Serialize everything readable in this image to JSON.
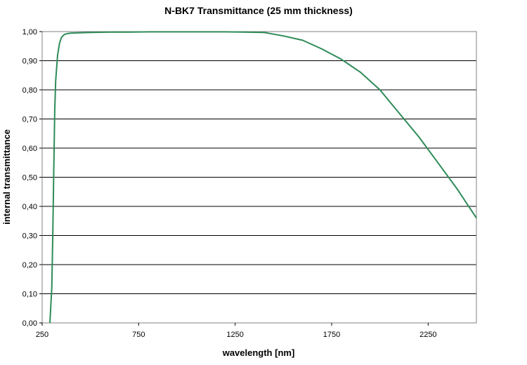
{
  "chart_data": {
    "type": "line",
    "title": "N-BK7 Transmittance (25 mm thickness)",
    "xlabel": "wavelength [nm]",
    "ylabel": "internal transmittance",
    "xlim": [
      250,
      2500
    ],
    "ylim": [
      0,
      1
    ],
    "xticks": [
      250,
      750,
      1250,
      1750,
      2250
    ],
    "xtick_labels": [
      "250",
      "750",
      "1250",
      "1750",
      "2250"
    ],
    "yticks": [
      0,
      0.1,
      0.2,
      0.3,
      0.4,
      0.5,
      0.6,
      0.7,
      0.8,
      0.9,
      1.0
    ],
    "ytick_labels": [
      "0,00",
      "0,10",
      "0,20",
      "0,30",
      "0,40",
      "0,50",
      "0,60",
      "0,70",
      "0,80",
      "0,90",
      "1,00"
    ],
    "grid": "horizontal",
    "legend": "none",
    "series": [
      {
        "color": "#2e8b57",
        "x": [
          290,
          300,
          305,
          310,
          315,
          320,
          330,
          340,
          350,
          365,
          380,
          400,
          500,
          600,
          700,
          800,
          900,
          1000,
          1100,
          1200,
          1300,
          1400,
          1500,
          1600,
          1700,
          1800,
          1900,
          2000,
          2100,
          2200,
          2300,
          2400,
          2500
        ],
        "y": [
          0.0,
          0.12,
          0.3,
          0.52,
          0.73,
          0.83,
          0.92,
          0.96,
          0.98,
          0.99,
          0.993,
          0.995,
          0.997,
          0.998,
          0.998,
          0.999,
          0.999,
          0.999,
          0.999,
          0.999,
          0.998,
          0.997,
          0.985,
          0.97,
          0.94,
          0.905,
          0.86,
          0.8,
          0.72,
          0.64,
          0.55,
          0.46,
          0.36
        ]
      }
    ]
  }
}
